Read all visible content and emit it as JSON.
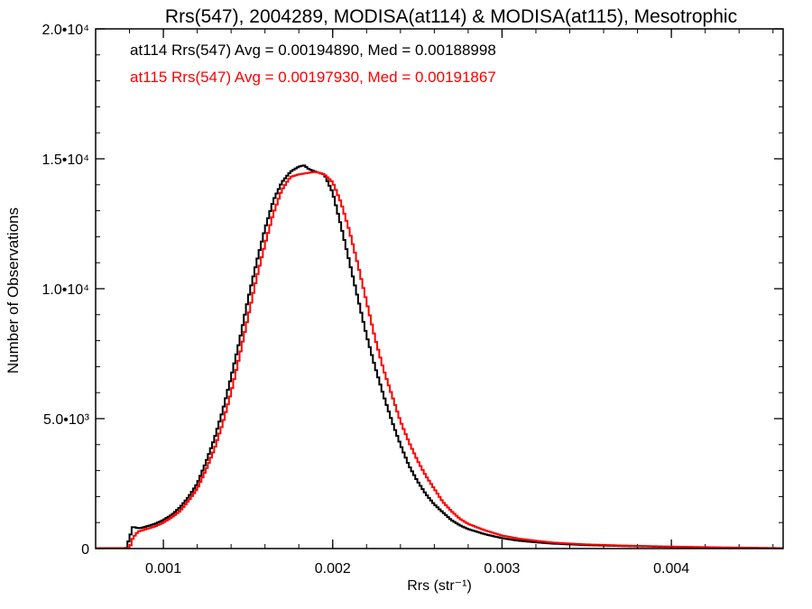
{
  "chart_data": {
    "type": "line",
    "title": "Rrs(547), 2004289, MODISA(at114) & MODISA(at115), Mesotrophic",
    "xlabel": "Rrs (str⁻¹)",
    "ylabel": "Number of Observations",
    "xlim": [
      0.0006,
      0.00466
    ],
    "ylim": [
      0,
      20000
    ],
    "x_ticks": [
      {
        "value": 0.001,
        "label": "0.001"
      },
      {
        "value": 0.002,
        "label": "0.002"
      },
      {
        "value": 0.003,
        "label": "0.003"
      },
      {
        "value": 0.004,
        "label": "0.004"
      }
    ],
    "y_ticks": [
      {
        "value": 0,
        "label": "0"
      },
      {
        "value": 5000,
        "label": "5.0•10³"
      },
      {
        "value": 10000,
        "label": "1.0•10⁴"
      },
      {
        "value": 15000,
        "label": "1.5•10⁴"
      },
      {
        "value": 20000,
        "label": "2.0•10⁴"
      }
    ],
    "x_minor_step": 0.0002,
    "y_minor_step": 1000,
    "grid": false,
    "line_style": "step",
    "series": [
      {
        "label": "at114 Rrs(547) Avg = 0.00194890, Med = 0.00188998",
        "color": "#000000",
        "x": [
          0.0006,
          0.00078,
          0.0008,
          0.00082,
          0.00084,
          0.00086,
          0.0009,
          0.00095,
          0.001,
          0.00105,
          0.0011,
          0.00115,
          0.0012,
          0.00125,
          0.0013,
          0.00135,
          0.0014,
          0.00145,
          0.0015,
          0.00155,
          0.0016,
          0.00165,
          0.0017,
          0.00175,
          0.0018,
          0.00183,
          0.00186,
          0.0019,
          0.00195,
          0.002,
          0.00205,
          0.0021,
          0.00215,
          0.0022,
          0.00225,
          0.0023,
          0.00235,
          0.0024,
          0.00245,
          0.0025,
          0.00255,
          0.0026,
          0.00265,
          0.0027,
          0.00275,
          0.0028,
          0.0029,
          0.003,
          0.0031,
          0.0032,
          0.0033,
          0.0035,
          0.0037,
          0.0039,
          0.0041,
          0.0043,
          0.0045,
          0.00466
        ],
        "y": [
          0,
          0,
          400,
          850,
          800,
          780,
          850,
          950,
          1100,
          1300,
          1600,
          2000,
          2500,
          3300,
          4200,
          5300,
          6600,
          8000,
          9600,
          11000,
          12300,
          13400,
          14100,
          14500,
          14700,
          14750,
          14600,
          14500,
          14400,
          13700,
          12400,
          11000,
          9600,
          8200,
          7000,
          5900,
          4900,
          4000,
          3200,
          2600,
          2100,
          1700,
          1400,
          1100,
          900,
          750,
          550,
          400,
          300,
          240,
          190,
          130,
          100,
          75,
          50,
          35,
          20,
          10
        ]
      },
      {
        "label": "at115 Rrs(547) Avg = 0.00197930, Med = 0.00191867",
        "color": "#ff0000",
        "x": [
          0.0006,
          0.0008,
          0.00082,
          0.00085,
          0.0009,
          0.00095,
          0.001,
          0.00105,
          0.0011,
          0.00115,
          0.0012,
          0.00125,
          0.0013,
          0.00135,
          0.0014,
          0.00145,
          0.0015,
          0.00155,
          0.0016,
          0.00165,
          0.0017,
          0.00175,
          0.0018,
          0.00185,
          0.0019,
          0.00195,
          0.002,
          0.00205,
          0.0021,
          0.00215,
          0.0022,
          0.00225,
          0.0023,
          0.00235,
          0.0024,
          0.00245,
          0.0025,
          0.00255,
          0.0026,
          0.00265,
          0.0027,
          0.00275,
          0.0028,
          0.0029,
          0.003,
          0.0031,
          0.0032,
          0.0033,
          0.0035,
          0.0037,
          0.0039,
          0.0041,
          0.0043,
          0.0045,
          0.00466
        ],
        "y": [
          0,
          0,
          400,
          650,
          750,
          850,
          1000,
          1200,
          1450,
          1850,
          2300,
          3000,
          3800,
          4800,
          6000,
          7400,
          8900,
          10400,
          11700,
          12900,
          13800,
          14300,
          14400,
          14450,
          14500,
          14400,
          14100,
          13300,
          12200,
          10900,
          9500,
          8100,
          6900,
          5900,
          4900,
          4100,
          3400,
          2800,
          2300,
          1800,
          1450,
          1150,
          950,
          700,
          500,
          380,
          300,
          230,
          160,
          120,
          90,
          65,
          45,
          30,
          15
        ]
      }
    ]
  }
}
